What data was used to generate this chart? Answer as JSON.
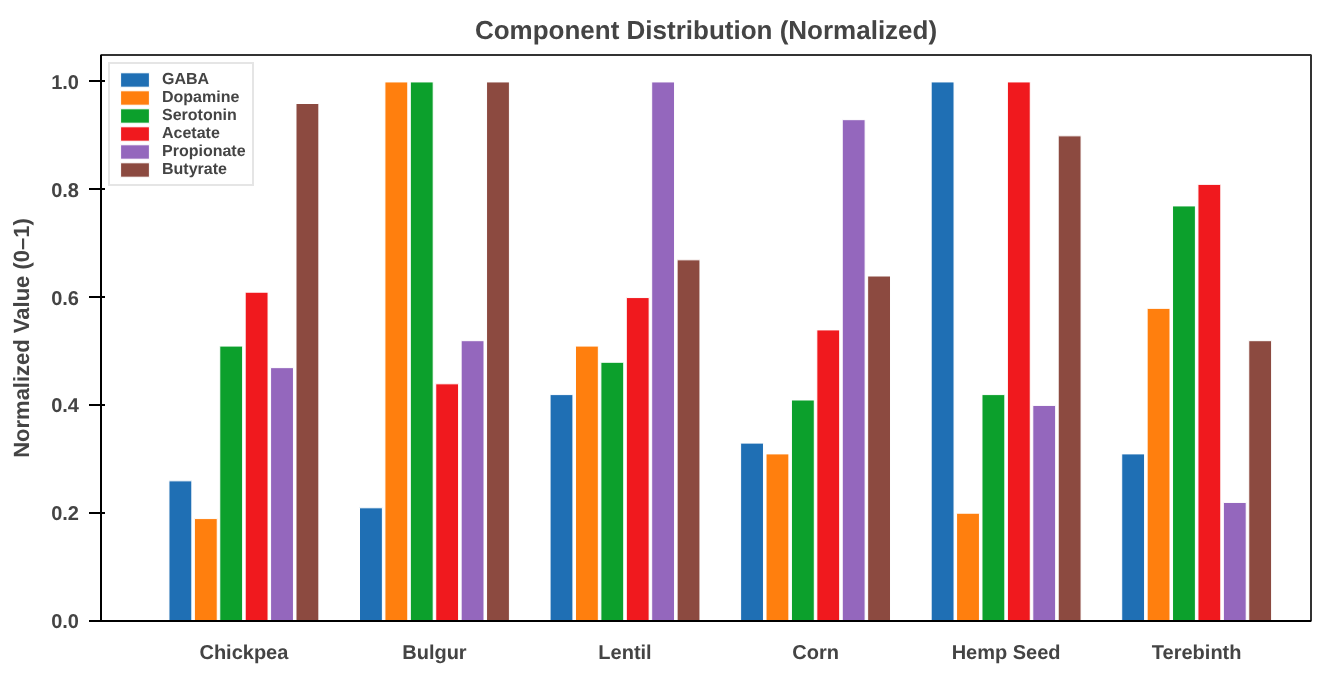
{
  "chart_data": {
    "type": "bar",
    "title": "Component Distribution (Normalized)",
    "ylabel": "Normalized Value (0–1)",
    "categories": [
      "Chickpea",
      "Bulgur",
      "Lentil",
      "Corn",
      "Hemp Seed",
      "Terebinth"
    ],
    "series": [
      {
        "name": "GABA",
        "color": "#1f6fb4",
        "values": [
          0.26,
          0.21,
          0.42,
          0.33,
          1.0,
          0.31
        ]
      },
      {
        "name": "Dopamine",
        "color": "#ff7f0e",
        "values": [
          0.19,
          1.0,
          0.51,
          0.31,
          0.2,
          0.58
        ]
      },
      {
        "name": "Serotonin",
        "color": "#0ca02c",
        "values": [
          0.51,
          1.0,
          0.48,
          0.41,
          0.42,
          0.77
        ]
      },
      {
        "name": "Acetate",
        "color": "#f0191e",
        "values": [
          0.61,
          0.44,
          0.6,
          0.54,
          1.0,
          0.81
        ]
      },
      {
        "name": "Propionate",
        "color": "#9467bd",
        "values": [
          0.47,
          0.52,
          1.0,
          0.93,
          0.4,
          0.22
        ]
      },
      {
        "name": "Butyrate",
        "color": "#8c4a40",
        "values": [
          0.96,
          1.0,
          0.67,
          0.64,
          0.9,
          0.52
        ]
      }
    ],
    "ylim": [
      0,
      1.05
    ],
    "yticks": [
      {
        "value": 0,
        "label": "0.0"
      },
      0.2,
      0.4,
      0.6,
      0.8,
      {
        "value": 1,
        "label": "1.0"
      }
    ],
    "grid": false,
    "legend": "top left"
  }
}
